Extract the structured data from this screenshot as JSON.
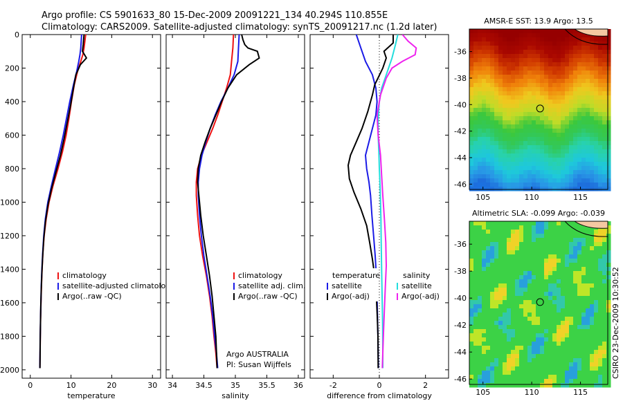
{
  "header": {
    "line1": "Argo profile: CS 5901633_80 15-Dec-2009 20091221_134 40.294S 110.855E",
    "line2": "Climatology: CARS2009. Satellite-adjusted climatology: synTS_20091217.nc (1.2d later)"
  },
  "credit": "CSIRO 23-Dec-2009 10:30:52",
  "colors": {
    "red": "#ee1111",
    "blue": "#1a1ae6",
    "black": "#000000",
    "cyan": "#22dddd",
    "magenta": "#ee22ee"
  },
  "chart_data": [
    {
      "type": "line",
      "id": "temperature",
      "xlabel": "temperature",
      "ylabel": "",
      "xlim": [
        -2,
        32
      ],
      "ylim": [
        2050,
        0
      ],
      "xticks": [
        0,
        10,
        20,
        30
      ],
      "yticks": [
        0,
        200,
        400,
        600,
        800,
        1000,
        1200,
        1400,
        1600,
        1800,
        2000
      ],
      "legend": [
        "climatology",
        "satellite-adjusted climatology",
        "Argo(..raw -QC)"
      ],
      "series": [
        {
          "name": "climatology",
          "color": "red",
          "x": [
            13.6,
            13.4,
            13.2,
            12.9,
            12.4,
            11.6,
            10.8,
            10.1,
            9.5,
            8.8,
            7.9,
            6.8,
            5.6,
            4.6,
            3.9,
            3.4,
            3.1,
            2.9,
            2.75,
            2.62,
            2.52,
            2.45,
            2.4,
            2.36
          ],
          "y": [
            0,
            40,
            80,
            120,
            160,
            220,
            300,
            400,
            500,
            600,
            700,
            800,
            900,
            1000,
            1100,
            1200,
            1300,
            1400,
            1500,
            1600,
            1700,
            1800,
            1900,
            1990
          ]
        },
        {
          "name": "satellite-adjusted climatology",
          "color": "blue",
          "x": [
            12.6,
            12.5,
            12.4,
            12.2,
            11.9,
            11.4,
            10.6,
            9.7,
            8.9,
            8.1,
            7.2,
            6.2,
            5.2,
            4.3,
            3.7,
            3.3,
            3.05,
            2.85,
            2.7,
            2.6,
            2.5,
            2.43,
            2.38,
            2.35
          ],
          "y": [
            0,
            40,
            80,
            120,
            160,
            220,
            300,
            400,
            500,
            600,
            700,
            800,
            900,
            1000,
            1100,
            1200,
            1300,
            1400,
            1500,
            1600,
            1700,
            1800,
            1900,
            1990
          ]
        },
        {
          "name": "Argo(..raw -QC)",
          "color": "black",
          "x": [
            13.2,
            13.1,
            13.0,
            12.8,
            13.8,
            12.3,
            11.2,
            10.6,
            9.9,
            9.1,
            8.3,
            7.4,
            6.3,
            5.2,
            4.3,
            3.7,
            3.3,
            3.05,
            2.85,
            2.7,
            2.58,
            2.5,
            2.44,
            2.4,
            2.37
          ],
          "y": [
            0,
            30,
            60,
            100,
            140,
            180,
            240,
            320,
            420,
            520,
            620,
            720,
            820,
            920,
            1020,
            1120,
            1220,
            1320,
            1420,
            1520,
            1620,
            1720,
            1820,
            1920,
            1990
          ]
        }
      ]
    },
    {
      "type": "line",
      "id": "salinity",
      "xlabel": "salinity",
      "ylabel": "",
      "xlim": [
        33.9,
        36.1
      ],
      "ylim": [
        2050,
        0
      ],
      "xticks": [
        34,
        34.5,
        35,
        35.5,
        36
      ],
      "legend": [
        "climatology",
        "satellite adj. clim.",
        "Argo(..raw -QC)"
      ],
      "annotation": [
        "Argo AUSTRALIA",
        "PI: Susan Wijffels"
      ],
      "series": [
        {
          "name": "climatology",
          "color": "red",
          "x": [
            34.97,
            34.96,
            34.94,
            34.92,
            34.86,
            34.79,
            34.72,
            34.64,
            34.55,
            34.46,
            34.4,
            34.38,
            34.38,
            34.4,
            34.43,
            34.48,
            34.54,
            34.59,
            34.63,
            34.66,
            34.69,
            34.71
          ],
          "y": [
            0,
            80,
            160,
            240,
            320,
            400,
            480,
            560,
            640,
            720,
            800,
            880,
            960,
            1080,
            1200,
            1320,
            1440,
            1560,
            1680,
            1800,
            1900,
            1990
          ]
        },
        {
          "name": "satellite adj. clim.",
          "color": "blue",
          "x": [
            35.06,
            35.05,
            35.04,
            34.98,
            34.88,
            34.77,
            34.68,
            34.6,
            34.53,
            34.47,
            34.43,
            34.41,
            34.41,
            34.43,
            34.46,
            34.5,
            34.55,
            34.6,
            34.64,
            34.67,
            34.7,
            34.72
          ],
          "y": [
            0,
            80,
            160,
            240,
            320,
            400,
            480,
            560,
            640,
            720,
            800,
            880,
            960,
            1080,
            1200,
            1320,
            1440,
            1560,
            1680,
            1800,
            1900,
            1990
          ]
        },
        {
          "name": "Argo(..raw -QC)",
          "color": "black",
          "x": [
            35.1,
            35.12,
            35.15,
            35.2,
            35.35,
            35.38,
            35.22,
            35.02,
            34.88,
            34.78,
            34.69,
            34.6,
            34.52,
            34.45,
            34.41,
            34.4,
            34.42,
            34.45,
            34.49,
            34.54,
            34.59,
            34.63,
            34.66,
            34.69,
            34.71
          ],
          "y": [
            0,
            30,
            60,
            80,
            100,
            140,
            180,
            240,
            320,
            400,
            480,
            560,
            640,
            720,
            800,
            880,
            960,
            1080,
            1200,
            1320,
            1440,
            1560,
            1680,
            1800,
            1990
          ]
        }
      ]
    },
    {
      "type": "line",
      "id": "difference",
      "xlabel": "difference from climatology",
      "ylabel": "",
      "xlim": [
        -3,
        3
      ],
      "ylim": [
        2050,
        0
      ],
      "xticks": [
        -2,
        0,
        2
      ],
      "zero_line": 0,
      "legend_title_left": "temperature",
      "legend_title_right": "salinity",
      "legend_left": [
        "satellite",
        "Argo(-adj)"
      ],
      "legend_right": [
        "satellite",
        "Argo(-adj)"
      ],
      "series": [
        {
          "name": "temperature satellite",
          "color": "blue",
          "x": [
            -1.0,
            -0.8,
            -0.6,
            -0.3,
            -0.15,
            -0.1,
            -0.15,
            -0.3,
            -0.45,
            -0.6,
            -0.55,
            -0.45,
            -0.38,
            -0.32,
            -0.25,
            -0.18,
            -0.13,
            -0.1,
            -0.08,
            -0.06,
            -0.05,
            -0.04
          ],
          "y": [
            0,
            80,
            160,
            240,
            320,
            400,
            480,
            560,
            640,
            720,
            800,
            880,
            960,
            1080,
            1200,
            1320,
            1440,
            1560,
            1680,
            1800,
            1900,
            1990
          ]
        },
        {
          "name": "temperature Argo(-adj)",
          "color": "black",
          "x": [
            0.6,
            0.6,
            0.2,
            0.3,
            0.15,
            -0.2,
            -0.3,
            -0.5,
            -0.75,
            -1.0,
            -1.25,
            -1.35,
            -1.3,
            -1.1,
            -0.8,
            -0.55,
            -0.42,
            -0.3,
            -0.2,
            -0.13,
            -0.09,
            -0.06,
            -0.05
          ],
          "y": [
            0,
            50,
            100,
            140,
            200,
            300,
            360,
            460,
            560,
            640,
            720,
            780,
            860,
            940,
            1040,
            1140,
            1240,
            1340,
            1440,
            1560,
            1680,
            1800,
            1990
          ]
        },
        {
          "name": "salinity satellite",
          "color": "cyan",
          "x": [
            0.8,
            0.7,
            0.55,
            0.3,
            0.1,
            0.0,
            -0.05,
            -0.05,
            -0.02,
            0.0,
            0.03,
            0.05,
            0.07,
            0.08,
            0.1,
            0.12,
            0.14,
            0.15,
            0.15
          ],
          "y": [
            0,
            60,
            140,
            240,
            320,
            400,
            500,
            600,
            700,
            800,
            900,
            1000,
            1100,
            1240,
            1400,
            1560,
            1720,
            1880,
            1990
          ]
        },
        {
          "name": "salinity Argo(-adj)",
          "color": "magenta",
          "x": [
            1.0,
            1.25,
            1.6,
            1.55,
            1.0,
            0.55,
            0.3,
            0.05,
            -0.1,
            -0.05,
            0.05,
            0.1,
            0.15,
            0.22,
            0.28,
            0.3,
            0.26,
            0.22,
            0.18,
            0.15,
            0.13
          ],
          "y": [
            0,
            40,
            80,
            120,
            160,
            200,
            260,
            360,
            480,
            600,
            720,
            840,
            960,
            1100,
            1240,
            1380,
            1500,
            1640,
            1780,
            1900,
            1990
          ]
        }
      ]
    },
    {
      "type": "heatmap",
      "id": "sst",
      "title": "AMSR-E SST: 13.9  Argo: 13.5",
      "xlim": [
        103.6,
        117.8
      ],
      "ylim": [
        -46.4,
        -34.3
      ],
      "xticks": [
        105,
        110,
        115
      ],
      "yticks": [
        -36,
        -38,
        -40,
        -42,
        -44,
        -46
      ],
      "marker": {
        "lon": 110.855,
        "lat": -40.294
      }
    },
    {
      "type": "heatmap",
      "id": "sla",
      "title": "Altimetric SLA: -0.099  Argo: -0.039",
      "xlim": [
        103.6,
        117.8
      ],
      "ylim": [
        -46.4,
        -34.3
      ],
      "xticks": [
        105,
        110,
        115
      ],
      "yticks": [
        -36,
        -38,
        -40,
        -42,
        -44,
        -46
      ],
      "marker": {
        "lon": 110.855,
        "lat": -40.294
      }
    }
  ]
}
